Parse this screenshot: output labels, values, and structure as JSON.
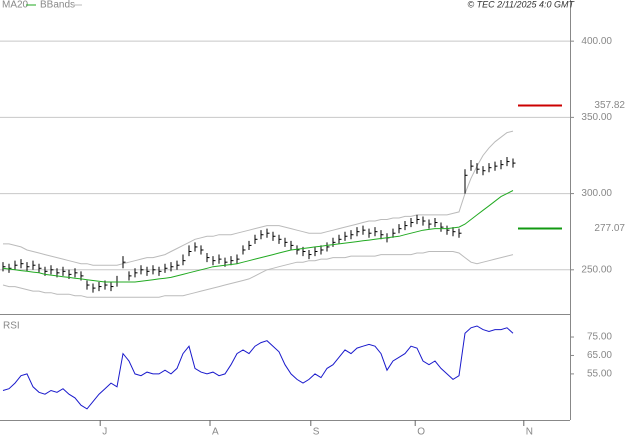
{
  "chart_data": [
    {
      "type": "hlc",
      "credit": "© TEC 2/11/2025 4:0 GMT",
      "xlim": [
        -0.5,
        94.5
      ],
      "xticks": [
        {
          "value": 16.2,
          "label": "J"
        },
        {
          "value": 34.5,
          "label": "A"
        },
        {
          "value": 51.3,
          "label": "S"
        },
        {
          "value": 68.7,
          "label": "O"
        },
        {
          "value": 86.8,
          "label": "N"
        }
      ],
      "ylim": [
        221,
        427
      ],
      "yticks": [
        {
          "value": 250,
          "label": "250.00"
        },
        {
          "value": 300,
          "label": "300.00"
        },
        {
          "value": 350,
          "label": "350.00"
        },
        {
          "value": 400,
          "label": "400.00"
        }
      ],
      "grid": true,
      "bar_color": "#000000",
      "high": [
        255,
        254,
        256,
        257,
        255,
        256,
        254,
        252,
        253,
        251,
        252,
        250,
        251,
        249,
        243,
        241,
        242,
        243,
        242,
        246,
        259,
        249,
        251,
        253,
        252,
        253,
        252,
        254,
        255,
        256,
        260,
        266,
        268,
        266,
        261,
        259,
        260,
        258,
        259,
        260,
        266,
        269,
        273,
        276,
        277,
        275,
        273,
        271,
        269,
        266,
        265,
        263,
        265,
        266,
        268,
        271,
        273,
        275,
        276,
        278,
        279,
        277,
        278,
        276,
        274,
        277,
        280,
        282,
        284,
        286,
        285,
        283,
        284,
        281,
        279,
        278,
        277,
        316,
        322,
        320,
        318,
        320,
        321,
        322,
        324,
        323
      ],
      "low": [
        249,
        248,
        250,
        251,
        249,
        250,
        248,
        246,
        247,
        245,
        246,
        244,
        245,
        243,
        237,
        235,
        236,
        237,
        236,
        239,
        251,
        243,
        245,
        247,
        246,
        247,
        246,
        248,
        249,
        250,
        253,
        259,
        262,
        260,
        255,
        253,
        254,
        252,
        253,
        254,
        260,
        263,
        267,
        270,
        271,
        269,
        267,
        265,
        263,
        260,
        259,
        257,
        259,
        260,
        262,
        265,
        267,
        269,
        270,
        272,
        273,
        271,
        272,
        270,
        268,
        271,
        274,
        276,
        278,
        280,
        279,
        277,
        278,
        275,
        273,
        272,
        271,
        300,
        315,
        313,
        312,
        314,
        315,
        316,
        318,
        317
      ],
      "close": [
        252,
        251,
        253,
        254,
        252,
        253,
        251,
        249,
        250,
        248,
        249,
        247,
        248,
        246,
        240,
        238,
        239,
        240,
        239,
        242,
        255,
        246,
        248,
        250,
        249,
        250,
        249,
        251,
        252,
        253,
        256,
        262,
        265,
        263,
        258,
        256,
        257,
        255,
        256,
        257,
        263,
        266,
        270,
        273,
        274,
        272,
        270,
        268,
        266,
        263,
        262,
        260,
        262,
        263,
        265,
        268,
        270,
        272,
        273,
        275,
        276,
        274,
        275,
        273,
        271,
        274,
        277,
        279,
        281,
        283,
        282,
        280,
        281,
        278,
        276,
        275,
        274,
        312,
        318,
        316,
        315,
        317,
        318,
        319,
        321,
        320
      ],
      "series": [
        {
          "name": "MA20",
          "color": "#22aa22",
          "values": [
            251,
            250.5,
            250,
            249.5,
            249,
            248.5,
            248,
            247,
            246.5,
            246,
            245.5,
            245,
            244.5,
            244,
            243.5,
            243,
            242.5,
            242,
            242,
            242,
            242,
            242,
            242,
            242.5,
            243,
            243.5,
            244,
            244.5,
            245,
            246,
            247,
            248,
            249,
            250,
            251,
            252,
            252.5,
            253,
            253.5,
            254,
            255,
            256,
            257,
            258,
            259,
            260,
            261,
            262,
            263,
            263.5,
            264,
            264.5,
            265,
            265.5,
            266,
            266.5,
            267,
            267.5,
            268,
            268.5,
            269,
            269.5,
            270,
            270.5,
            271,
            271.5,
            272,
            273,
            274,
            275,
            276,
            276.5,
            277,
            277,
            277,
            277.5,
            278,
            280,
            283,
            286,
            289,
            292,
            295,
            298,
            300,
            302
          ]
        }
      ],
      "bands": {
        "name": "BBands",
        "color": "#bbbbbb",
        "upper": [
          267,
          267,
          266,
          265,
          263,
          262,
          261,
          260,
          259,
          258,
          257,
          256,
          255,
          254,
          254,
          253,
          253,
          253,
          253,
          253,
          254,
          255,
          256,
          257,
          258,
          258,
          259,
          260,
          262,
          264,
          266,
          268,
          270,
          271,
          272,
          272,
          273,
          273,
          273,
          274,
          275,
          276,
          277,
          278,
          279,
          279,
          279,
          278,
          277,
          276,
          275,
          274,
          274,
          274,
          275,
          276,
          277,
          278,
          279,
          280,
          281,
          282,
          282,
          283,
          283,
          284,
          284,
          285,
          285,
          286,
          286,
          286,
          286,
          286,
          286,
          287,
          288,
          300,
          310,
          318,
          325,
          330,
          334,
          337,
          340,
          341
        ],
        "lower": [
          240,
          239,
          239,
          238,
          237,
          236,
          236,
          235,
          235,
          234,
          234,
          234,
          233,
          233,
          232,
          232,
          232,
          232,
          232,
          232,
          232,
          232,
          232,
          232,
          232,
          232,
          232,
          233,
          233,
          233,
          233,
          234,
          235,
          236,
          237,
          238,
          239,
          240,
          241,
          242,
          243,
          244,
          246,
          248,
          250,
          251,
          252,
          253,
          254,
          255,
          255,
          256,
          256,
          257,
          257,
          258,
          258,
          258,
          259,
          259,
          259,
          259,
          259,
          260,
          260,
          260,
          260,
          260,
          260,
          261,
          261,
          262,
          262,
          262,
          262,
          262,
          261,
          258,
          255,
          254,
          255,
          256,
          257,
          258,
          259,
          260
        ]
      },
      "levels": [
        {
          "value": 357.82,
          "label": "357.82",
          "color": "#cc0000"
        },
        {
          "value": 277.07,
          "label": "277.07",
          "color": "#119911"
        }
      ]
    },
    {
      "type": "line",
      "title": "RSI",
      "xlim": [
        -0.5,
        94.5
      ],
      "ylim": [
        30,
        86.4
      ],
      "yticks": [
        {
          "value": 55,
          "label": "55.00"
        },
        {
          "value": 65,
          "label": "65.00"
        },
        {
          "value": 75,
          "label": "75.00"
        }
      ],
      "series": [
        {
          "color": "#1a1acc",
          "values": [
            46,
            47,
            50,
            54,
            55,
            48,
            45,
            44,
            46,
            45,
            47,
            44,
            42,
            38,
            36,
            40,
            44,
            47,
            50,
            48,
            66,
            62,
            55,
            54,
            56,
            55,
            55,
            57,
            55,
            58,
            66,
            70,
            58,
            56,
            55,
            56,
            54,
            55,
            60,
            66,
            68,
            66,
            70,
            72,
            73,
            70,
            67,
            60,
            55,
            52,
            50,
            52,
            55,
            53,
            58,
            60,
            64,
            68,
            66,
            69,
            70,
            71,
            70,
            66,
            57,
            62,
            64,
            66,
            70,
            69,
            62,
            60,
            62,
            58,
            55,
            52,
            54,
            77,
            80,
            81,
            79,
            78,
            79,
            79,
            80,
            77
          ]
        }
      ]
    }
  ]
}
